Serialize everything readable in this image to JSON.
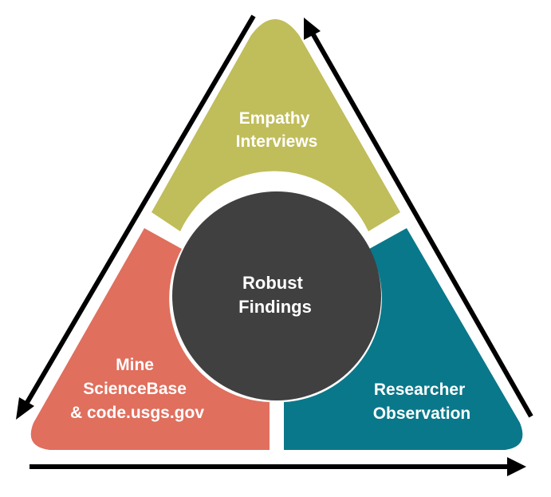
{
  "diagram": {
    "segments": {
      "top": {
        "lines": [
          "Empathy",
          "Interviews"
        ],
        "color": "#c0bd5b"
      },
      "left": {
        "lines": [
          "Mine",
          "ScienceBase",
          "& code.usgs.gov"
        ],
        "color": "#e06f5e"
      },
      "right": {
        "lines": [
          "Researcher",
          "Observation"
        ],
        "color": "#09788a"
      }
    },
    "center": {
      "lines": [
        "Robust",
        "Findings"
      ],
      "color": "#404040"
    },
    "arrow_color": "#000000"
  }
}
